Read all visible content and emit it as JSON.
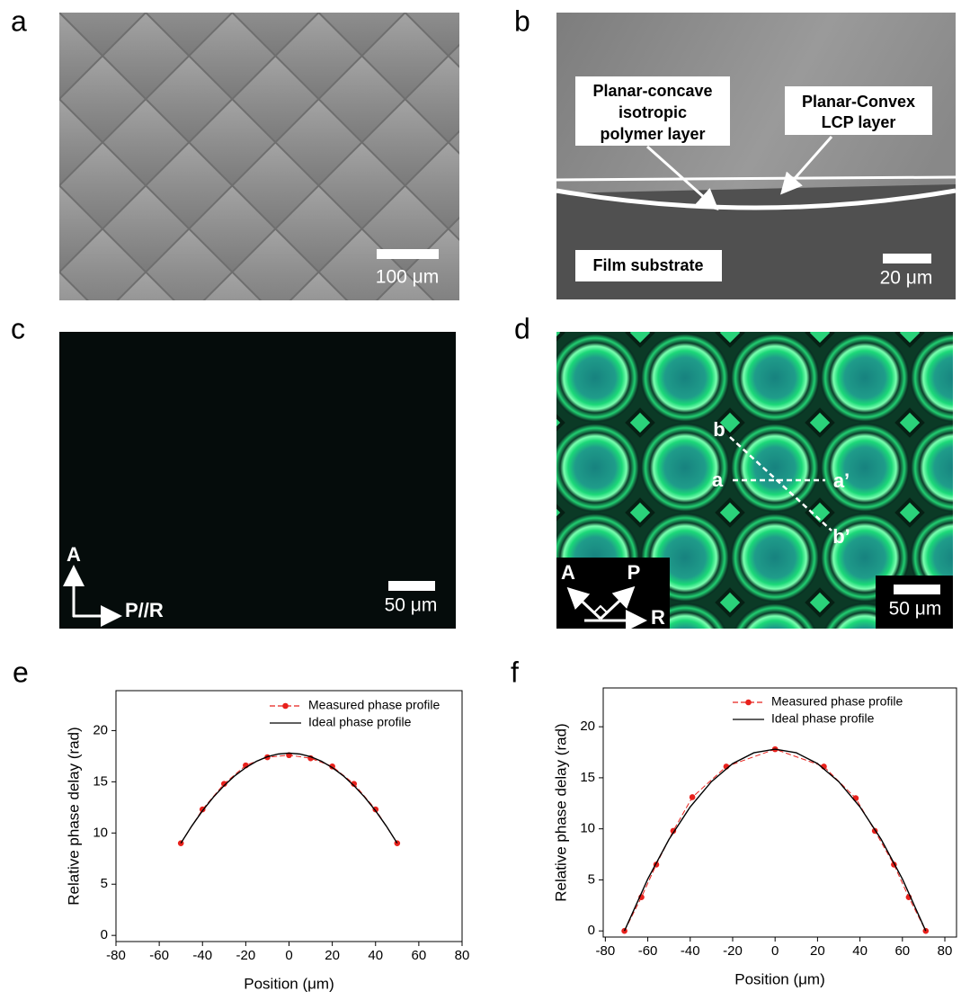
{
  "panels": [
    {
      "label": "a",
      "scale_bar": "100 μm"
    },
    {
      "label": "b",
      "scale_bar": "20 μm",
      "annotations": [
        {
          "lines": [
            "Planar-concave",
            "isotropic",
            "polymer layer"
          ]
        },
        {
          "lines": [
            "Planar-Convex",
            "LCP layer"
          ]
        },
        {
          "lines": [
            "Film substrate"
          ]
        }
      ]
    },
    {
      "label": "c",
      "scale_bar": "50 μm",
      "axes": [
        "A",
        "P//R"
      ]
    },
    {
      "label": "d",
      "scale_bar": "50 μm",
      "axes": [
        "A",
        "P",
        "R"
      ],
      "line_labels": [
        "b",
        "a",
        "a’",
        "b’"
      ]
    }
  ],
  "chart_data": [
    {
      "type": "line",
      "panel_label": "e",
      "x_label": "Position (μm)",
      "y_label": "Relative phase delay (rad)",
      "xlim": [
        -80,
        80
      ],
      "ylim": [
        -0.6,
        23.9
      ],
      "xticks": [
        -80,
        -60,
        -40,
        -20,
        0,
        20,
        40,
        60,
        80
      ],
      "yticks": [
        0,
        5,
        10,
        15,
        20
      ],
      "series": [
        {
          "name": "Measured phase profile",
          "color": "#e8211c",
          "dashed": true,
          "markers": true,
          "x": [
            -50,
            -40,
            -30,
            -20,
            -10,
            0,
            10,
            20,
            30,
            40,
            50
          ],
          "values": [
            9.0,
            12.3,
            14.8,
            16.6,
            17.4,
            17.6,
            17.3,
            16.5,
            14.8,
            12.3,
            9.0
          ]
        },
        {
          "name": "Ideal phase profile",
          "color": "#000000",
          "dashed": false,
          "markers": false,
          "x": [
            -50,
            -45,
            -40,
            -35,
            -30,
            -25,
            -20,
            -15,
            -10,
            -5,
            0,
            5,
            10,
            15,
            20,
            25,
            30,
            35,
            40,
            45,
            50
          ],
          "values": [
            9.0,
            10.67,
            12.17,
            13.49,
            14.63,
            15.6,
            16.39,
            17.01,
            17.45,
            17.71,
            17.8,
            17.71,
            17.45,
            17.01,
            16.39,
            15.6,
            14.63,
            13.49,
            12.17,
            10.67,
            9.0
          ]
        }
      ]
    },
    {
      "type": "line",
      "panel_label": "f",
      "x_label": "Position (μm)",
      "y_label": "Relative phase delay (rad)",
      "xlim": [
        -81,
        85.5
      ],
      "ylim": [
        -0.6,
        23.8
      ],
      "xticks": [
        -80,
        -60,
        -40,
        -20,
        0,
        20,
        40,
        60,
        80
      ],
      "yticks": [
        0,
        5,
        10,
        15,
        20
      ],
      "series": [
        {
          "name": "Measured phase profile",
          "color": "#e8211c",
          "dashed": true,
          "markers": true,
          "x": [
            -71,
            -63,
            -56,
            -48,
            -39,
            -23,
            0,
            23,
            38,
            47,
            56,
            63,
            71
          ],
          "values": [
            0,
            3.3,
            6.5,
            9.8,
            13.1,
            16.1,
            17.8,
            16.1,
            13.0,
            9.8,
            6.5,
            3.3,
            0
          ]
        },
        {
          "name": "Ideal phase profile",
          "color": "#000000",
          "dashed": false,
          "markers": false,
          "x": [
            -71,
            -60,
            -50,
            -40,
            -30,
            -20,
            -10,
            0,
            10,
            20,
            30,
            40,
            50,
            60,
            71
          ],
          "values": [
            0,
            5.09,
            8.97,
            12.15,
            14.62,
            16.39,
            17.45,
            17.8,
            17.45,
            16.39,
            14.62,
            12.15,
            8.97,
            5.09,
            0
          ]
        }
      ]
    }
  ]
}
